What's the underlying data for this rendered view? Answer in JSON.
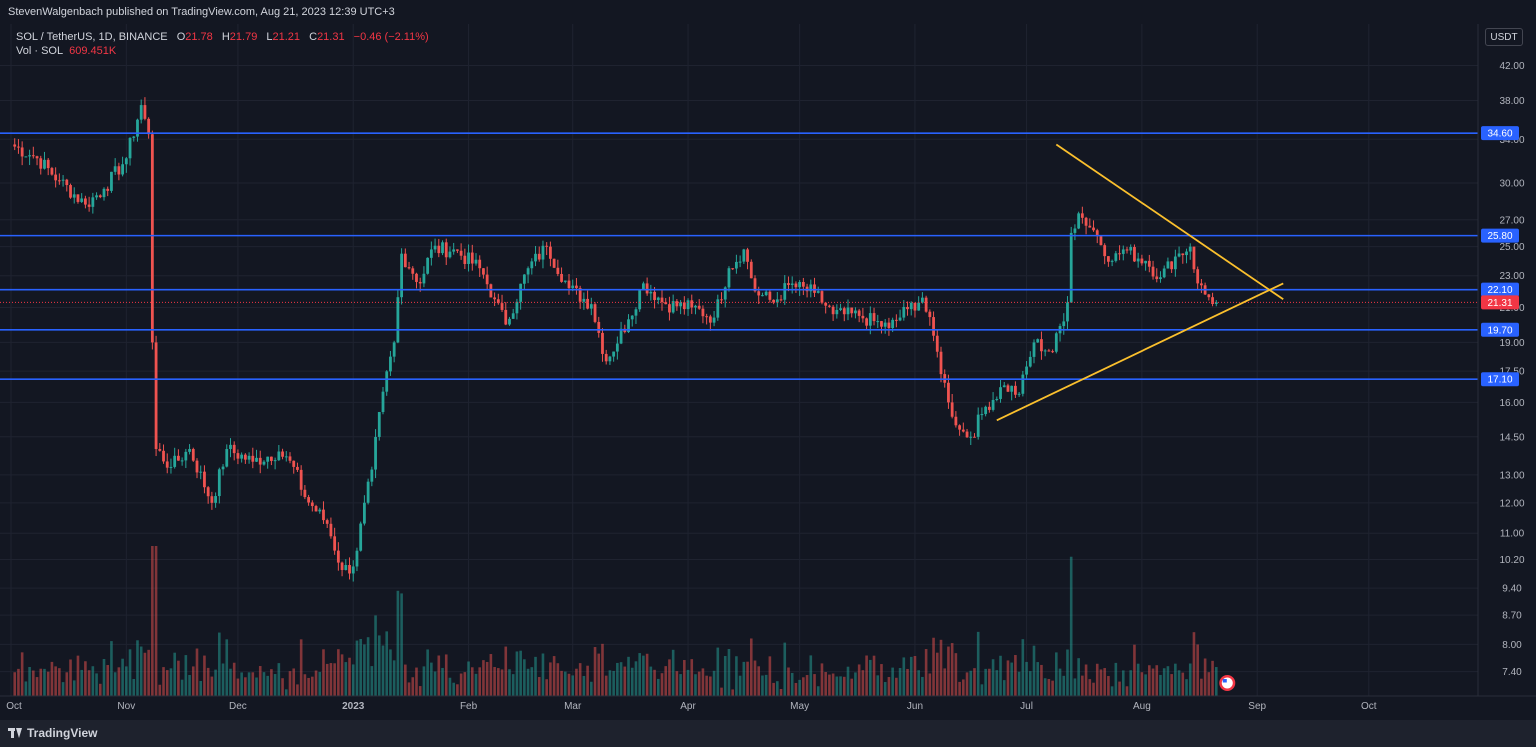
{
  "header": {
    "publisher": "StevenWalgenbach published on TradingView.com, Aug 21, 2023 12:39 UTC+3"
  },
  "legend": {
    "symbol": "SOL / TetherUS, 1D, BINANCE",
    "o_label": "O",
    "o_value": "21.78",
    "h_label": "H",
    "h_value": "21.79",
    "l_label": "L",
    "l_value": "21.21",
    "c_label": "C",
    "c_value": "21.31",
    "change": "−0.46 (−2.11%)",
    "vol_label": "Vol · SOL",
    "vol_value": "609.451K"
  },
  "currency": "USDT",
  "footer": {
    "brand": "TradingView"
  },
  "colors": {
    "background": "#131722",
    "grid": "#1f2330",
    "up": "#26a69a",
    "down": "#ef5350",
    "level": "#2962ff",
    "triangle": "#fbc02d",
    "current": "#f23645"
  },
  "chart_data": {
    "type": "candlestick",
    "scale": "log",
    "ylim": [
      6.9,
      46.5
    ],
    "y_ticks": [
      42.0,
      38.0,
      34.0,
      30.0,
      27.0,
      25.0,
      23.0,
      21.0,
      19.0,
      17.5,
      16.0,
      14.5,
      13.0,
      12.0,
      11.0,
      10.2,
      9.4,
      8.7,
      8.0,
      7.4
    ],
    "x_ticks": [
      "Oct",
      "Nov",
      "Dec",
      "2023",
      "Feb",
      "Mar",
      "Apr",
      "May",
      "Jun",
      "Jul",
      "Aug",
      "Sep",
      "Oct"
    ],
    "x_tick_dates": [
      "2022-10-01",
      "2022-11-01",
      "2022-12-01",
      "2023-01-01",
      "2023-02-01",
      "2023-03-01",
      "2023-04-01",
      "2023-05-01",
      "2023-06-01",
      "2023-07-01",
      "2023-08-01",
      "2023-09-01",
      "2023-10-01"
    ],
    "horizontal_levels": [
      34.6,
      25.8,
      22.1,
      19.7,
      17.1
    ],
    "current_price": 21.31,
    "trendlines": [
      {
        "from": [
          "2023-07-09",
          33.5
        ],
        "to": [
          "2023-09-08",
          21.5
        ]
      },
      {
        "from": [
          "2023-06-23",
          15.2
        ],
        "to": [
          "2023-09-08",
          22.5
        ]
      }
    ],
    "anchors": [
      [
        "2022-10-01",
        33.5
      ],
      [
        "2022-10-08",
        32.2
      ],
      [
        "2022-10-14",
        30.2
      ],
      [
        "2022-10-21",
        28.2
      ],
      [
        "2022-10-26",
        29.5
      ],
      [
        "2022-11-01",
        32.2
      ],
      [
        "2022-11-05",
        37.5
      ],
      [
        "2022-11-07",
        34.5
      ],
      [
        "2022-11-08",
        19.0
      ],
      [
        "2022-11-09",
        14.0
      ],
      [
        "2022-11-13",
        13.3
      ],
      [
        "2022-11-18",
        14.0
      ],
      [
        "2022-11-24",
        12.0
      ],
      [
        "2022-11-28",
        14.0
      ],
      [
        "2022-12-05",
        13.5
      ],
      [
        "2022-12-12",
        13.9
      ],
      [
        "2022-12-16",
        13.3
      ],
      [
        "2022-12-19",
        12.2
      ],
      [
        "2022-12-25",
        11.3
      ],
      [
        "2022-12-29",
        9.9
      ],
      [
        "2023-01-01",
        10.0
      ],
      [
        "2023-01-06",
        13.2
      ],
      [
        "2023-01-09",
        16.5
      ],
      [
        "2023-01-12",
        19.0
      ],
      [
        "2023-01-14",
        24.5
      ],
      [
        "2023-01-19",
        22.5
      ],
      [
        "2023-01-22",
        24.8
      ],
      [
        "2023-01-28",
        24.8
      ],
      [
        "2023-02-04",
        23.5
      ],
      [
        "2023-02-08",
        21.5
      ],
      [
        "2023-02-11",
        20.0
      ],
      [
        "2023-02-17",
        23.5
      ],
      [
        "2023-02-22",
        25.0
      ],
      [
        "2023-02-28",
        22.2
      ],
      [
        "2023-03-06",
        21.2
      ],
      [
        "2023-03-10",
        18.0
      ],
      [
        "2023-03-16",
        20.3
      ],
      [
        "2023-03-20",
        22.5
      ],
      [
        "2023-03-26",
        21.2
      ],
      [
        "2023-04-02",
        21.0
      ],
      [
        "2023-04-08",
        20.4
      ],
      [
        "2023-04-12",
        23.5
      ],
      [
        "2023-04-16",
        24.8
      ],
      [
        "2023-04-19",
        22.0
      ],
      [
        "2023-04-24",
        21.3
      ],
      [
        "2023-04-28",
        22.4
      ],
      [
        "2023-05-05",
        21.9
      ],
      [
        "2023-05-10",
        20.6
      ],
      [
        "2023-05-17",
        20.5
      ],
      [
        "2023-05-25",
        19.8
      ],
      [
        "2023-05-30",
        20.9
      ],
      [
        "2023-06-03",
        21.6
      ],
      [
        "2023-06-07",
        18.5
      ],
      [
        "2023-06-10",
        16.0
      ],
      [
        "2023-06-13",
        14.8
      ],
      [
        "2023-06-16",
        14.5
      ],
      [
        "2023-06-20",
        15.8
      ],
      [
        "2023-06-25",
        16.8
      ],
      [
        "2023-06-29",
        16.4
      ],
      [
        "2023-07-03",
        19.0
      ],
      [
        "2023-07-08",
        18.5
      ],
      [
        "2023-07-12",
        21.3
      ],
      [
        "2023-07-13",
        26.0
      ],
      [
        "2023-07-15",
        27.5
      ],
      [
        "2023-07-19",
        26.2
      ],
      [
        "2023-07-24",
        24.0
      ],
      [
        "2023-07-27",
        24.8
      ],
      [
        "2023-08-02",
        24.0
      ],
      [
        "2023-08-06",
        22.9
      ],
      [
        "2023-08-10",
        24.3
      ],
      [
        "2023-08-14",
        25.0
      ],
      [
        "2023-08-16",
        22.5
      ],
      [
        "2023-08-18",
        21.8
      ],
      [
        "2023-08-21",
        21.31
      ]
    ]
  }
}
